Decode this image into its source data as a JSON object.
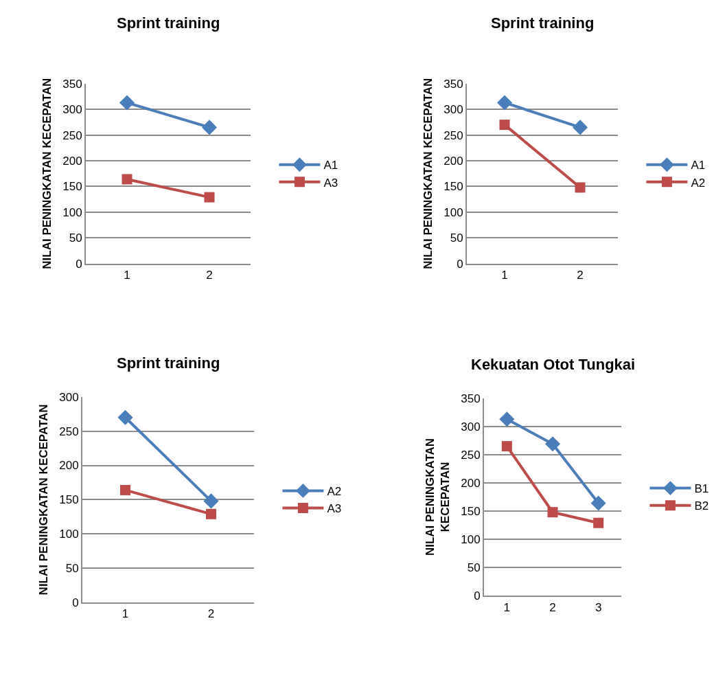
{
  "chart_data": [
    {
      "type": "line",
      "title": "Sprint training",
      "ylabel": "NILAI PENINGKATAN KECEPATAN",
      "categories": [
        "1",
        "2"
      ],
      "series": [
        {
          "name": "A1",
          "color": "#4a7ebb",
          "marker": "diamond",
          "values": [
            313,
            265
          ]
        },
        {
          "name": "A3",
          "color": "#be4b48",
          "marker": "square",
          "values": [
            164,
            129
          ]
        }
      ],
      "ylim": [
        0,
        350
      ],
      "yticks": [
        0,
        50,
        100,
        150,
        200,
        250,
        300,
        350
      ],
      "grid": "y",
      "legend": "right"
    },
    {
      "type": "line",
      "title": "Sprint training",
      "ylabel": "NILAI PENINGKATAN KECEPATAN",
      "categories": [
        "1",
        "2"
      ],
      "series": [
        {
          "name": "A1",
          "color": "#4a7ebb",
          "marker": "diamond",
          "values": [
            313,
            265
          ]
        },
        {
          "name": "A2",
          "color": "#be4b48",
          "marker": "square",
          "values": [
            270,
            148
          ]
        }
      ],
      "ylim": [
        0,
        350
      ],
      "yticks": [
        0,
        50,
        100,
        150,
        200,
        250,
        300,
        350
      ],
      "grid": "y",
      "legend": "right"
    },
    {
      "type": "line",
      "title": "Sprint training",
      "ylabel": "NILAI PENINGKATAN KECEPATAN",
      "categories": [
        "1",
        "2"
      ],
      "series": [
        {
          "name": "A2",
          "color": "#4a7ebb",
          "marker": "diamond",
          "values": [
            270,
            148
          ]
        },
        {
          "name": "A3",
          "color": "#be4b48",
          "marker": "square",
          "values": [
            164,
            129
          ]
        }
      ],
      "ylim": [
        0,
        300
      ],
      "yticks": [
        0,
        50,
        100,
        150,
        200,
        250,
        300
      ],
      "grid": "y",
      "legend": "right"
    },
    {
      "type": "line",
      "title": "Kekuatan Otot Tungkai",
      "ylabel": "NILAI PENINGKATAN\nKECEPATAN",
      "categories": [
        "1",
        "2",
        "3"
      ],
      "series": [
        {
          "name": "B1",
          "color": "#4a7ebb",
          "marker": "diamond",
          "values": [
            313,
            269,
            164
          ]
        },
        {
          "name": "B2",
          "color": "#be4b48",
          "marker": "square",
          "values": [
            265,
            148,
            129
          ]
        }
      ],
      "ylim": [
        0,
        350
      ],
      "yticks": [
        0,
        50,
        100,
        150,
        200,
        250,
        300,
        350
      ],
      "grid": "y",
      "legend": "right"
    }
  ]
}
